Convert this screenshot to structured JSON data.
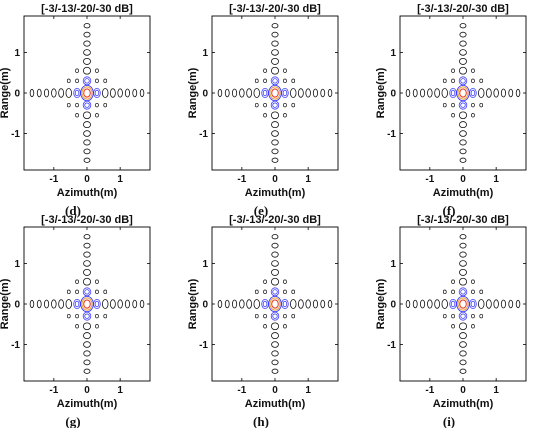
{
  "colors": {
    "level_-3dB": "#e8412b",
    "level_-13dB": "#e8a23a",
    "level_-20dB": "#3a3aff",
    "level_-30dB": "#111111",
    "frame": "#000000"
  },
  "chart_data": [
    {
      "type": "contour",
      "title": "[-3/-13/-20/-30 dB]",
      "xlabel": "Azimuth(m)",
      "ylabel": "Range(m)",
      "caption": "(d)",
      "xlim": [
        -1.9,
        1.9
      ],
      "ylim": [
        -1.9,
        1.9
      ],
      "xticks": [
        -1,
        0,
        1
      ],
      "yticks": [
        1,
        0,
        -1
      ],
      "contour_levels_dB": [
        -3,
        -13,
        -20,
        -30
      ],
      "grid": false
    },
    {
      "type": "contour",
      "title": "[-3/-13/-20/-30 dB]",
      "xlabel": "Azimuth(m)",
      "ylabel": "Range(m)",
      "caption": "(e)",
      "xlim": [
        -1.9,
        1.9
      ],
      "ylim": [
        -1.9,
        1.9
      ],
      "xticks": [
        -1,
        0,
        1
      ],
      "yticks": [
        1,
        0,
        -1
      ],
      "contour_levels_dB": [
        -3,
        -13,
        -20,
        -30
      ],
      "grid": false
    },
    {
      "type": "contour",
      "title": "[-3/-13/-20/-30 dB]",
      "xlabel": "Azimuth(m)",
      "ylabel": "Range(m)",
      "caption": "(f)",
      "xlim": [
        -1.9,
        1.9
      ],
      "ylim": [
        -1.9,
        1.9
      ],
      "xticks": [
        -1,
        0,
        1
      ],
      "yticks": [
        1,
        0,
        -1
      ],
      "contour_levels_dB": [
        -3,
        -13,
        -20,
        -30
      ],
      "grid": false
    },
    {
      "type": "contour",
      "title": "[-3/-13/-20/-30 dB]",
      "xlabel": "Azimuth(m)",
      "ylabel": "Range(m)",
      "caption": "(g)",
      "xlim": [
        -1.9,
        1.9
      ],
      "ylim": [
        -1.9,
        1.9
      ],
      "xticks": [
        -1,
        0,
        1
      ],
      "yticks": [
        1,
        0,
        -1
      ],
      "contour_levels_dB": [
        -3,
        -13,
        -20,
        -30
      ],
      "grid": false
    },
    {
      "type": "contour",
      "title": "[-3/-13/-20/-30 dB]",
      "xlabel": "Azimuth(m)",
      "ylabel": "Range(m)",
      "caption": "(h)",
      "xlim": [
        -1.9,
        1.9
      ],
      "ylim": [
        -1.9,
        1.9
      ],
      "xticks": [
        -1,
        0,
        1
      ],
      "yticks": [
        1,
        0,
        -1
      ],
      "contour_levels_dB": [
        -3,
        -13,
        -20,
        -30
      ],
      "grid": false
    },
    {
      "type": "contour",
      "title": "[-3/-13/-20/-30 dB]",
      "xlabel": "Azimuth(m)",
      "ylabel": "Range(m)",
      "caption": "(i)",
      "xlim": [
        -1.9,
        1.9
      ],
      "ylim": [
        -1.9,
        1.9
      ],
      "xticks": [
        -1,
        0,
        1
      ],
      "yticks": [
        1,
        0,
        -1
      ],
      "contour_levels_dB": [
        -3,
        -13,
        -20,
        -30
      ],
      "grid": false
    }
  ]
}
